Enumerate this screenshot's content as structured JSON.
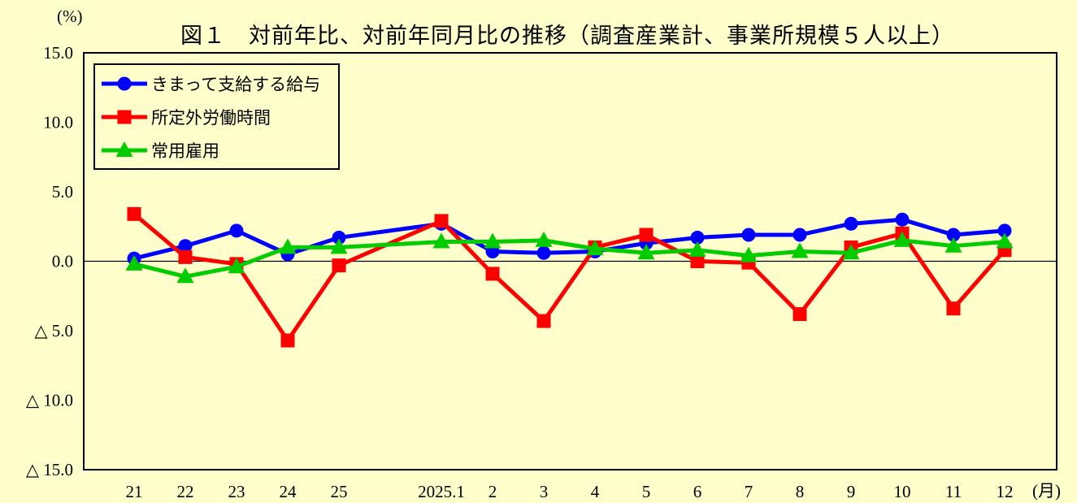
{
  "chart_data": {
    "type": "line",
    "title": "図１　対前年比、対前年同月比の推移（調査産業計、事業所規模５人以上）",
    "background_color": "#FFFFCC",
    "grid": false,
    "legend_position": "top-left",
    "y_axis": {
      "unit": "(%)",
      "range": [
        -15,
        15
      ],
      "ticks": [
        {
          "value": 15,
          "label": "15.0"
        },
        {
          "value": 10,
          "label": "10.0"
        },
        {
          "value": 5,
          "label": "5.0"
        },
        {
          "value": 0,
          "label": "0.0"
        },
        {
          "value": -5,
          "label": "△ 5.0"
        },
        {
          "value": -10,
          "label": "△ 10.0"
        },
        {
          "value": -15,
          "label": "△ 15.0"
        }
      ]
    },
    "x_axis": {
      "unit": "(月)",
      "labels": [
        "21",
        "22",
        "23",
        "24",
        "25",
        "2025.1",
        "2",
        "3",
        "4",
        "5",
        "6",
        "7",
        "8",
        "9",
        "10",
        "11",
        "12"
      ],
      "gap_after_index": 4
    },
    "series": [
      {
        "name": "きまって支給する給与",
        "color": "#0000FF",
        "marker": "circle",
        "values": [
          0.2,
          1.1,
          2.2,
          0.5,
          1.7,
          2.7,
          0.7,
          0.6,
          0.7,
          1.3,
          1.7,
          1.9,
          1.9,
          2.7,
          3.0,
          1.9,
          2.2
        ]
      },
      {
        "name": "所定外労働時間",
        "color": "#FF0000",
        "marker": "square",
        "values": [
          3.4,
          0.3,
          -0.2,
          -5.7,
          -0.3,
          2.9,
          -0.9,
          -4.3,
          1.0,
          1.9,
          0.0,
          -0.1,
          -3.8,
          1.0,
          2.0,
          -3.4,
          0.8
        ]
      },
      {
        "name": "常用雇用",
        "color": "#00CC00",
        "marker": "triangle",
        "values": [
          -0.2,
          -1.1,
          -0.4,
          1.0,
          1.0,
          1.4,
          1.4,
          1.5,
          0.9,
          0.6,
          0.8,
          0.4,
          0.7,
          0.6,
          1.5,
          1.1,
          1.4
        ]
      }
    ]
  }
}
